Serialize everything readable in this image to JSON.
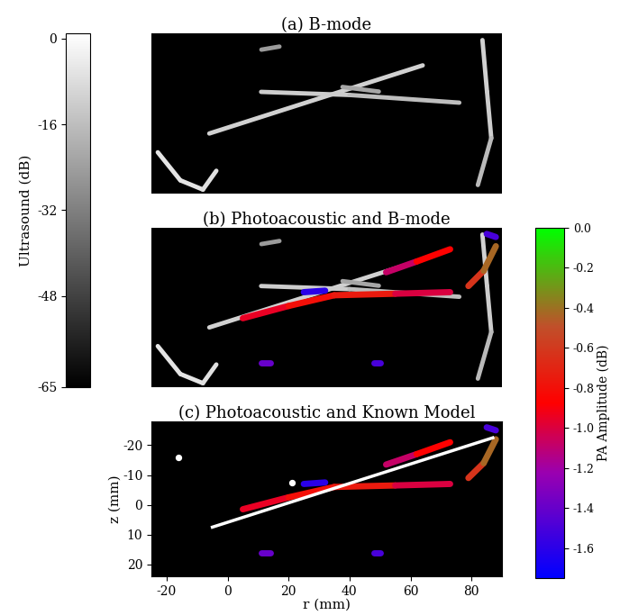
{
  "chart_data": [
    {
      "type": "image",
      "title": "(a) B-mode",
      "xlim": [
        -25,
        90
      ],
      "ylim": [
        24,
        -28
      ],
      "tick_labels": false,
      "ultrasound": [
        {
          "points": [
            [
              -6,
              4.5
            ],
            [
              64,
              -17.6
            ]
          ],
          "db": [
            -12,
            -10
          ]
        },
        {
          "points": [
            [
              11,
              -9
            ],
            [
              40,
              -8
            ],
            [
              76,
              -5.5
            ]
          ],
          "db": [
            -14,
            -10,
            -22
          ]
        },
        {
          "points": [
            [
              -22.9,
              10.6
            ],
            [
              -15.5,
              19.7
            ],
            [
              -8.1,
              22.7
            ],
            [
              -3.7,
              16.6
            ]
          ],
          "db": [
            -6,
            -6,
            -6,
            -8
          ]
        },
        {
          "points": [
            [
              83.6,
              -25.8
            ],
            [
              85.1,
              -9.1
            ],
            [
              86.5,
              6.0
            ],
            [
              82.1,
              21.2
            ]
          ],
          "db": [
            -12,
            -10,
            -14,
            -20
          ]
        },
        {
          "points": [
            [
              11.1,
              -22.7
            ],
            [
              17,
              -23.7
            ]
          ],
          "db": [
            -25,
            -25
          ]
        },
        {
          "points": [
            [
              37.7,
              -10.6
            ],
            [
              49.6,
              -9.1
            ]
          ],
          "db": [
            -22,
            -22
          ]
        }
      ]
    },
    {
      "type": "image",
      "title": "(b) Photoacoustic and B-mode",
      "xlim": [
        -25,
        90
      ],
      "ylim": [
        24,
        -28
      ],
      "tick_labels": false,
      "ultrasound": [
        {
          "points": [
            [
              -6,
              4.5
            ],
            [
              64,
              -17.6
            ]
          ],
          "db": [
            -12,
            -10
          ]
        },
        {
          "points": [
            [
              11,
              -9
            ],
            [
              40,
              -8
            ],
            [
              76,
              -5.5
            ]
          ],
          "db": [
            -14,
            -10,
            -22
          ]
        },
        {
          "points": [
            [
              -22.9,
              10.6
            ],
            [
              -15.5,
              19.7
            ],
            [
              -8.1,
              22.7
            ],
            [
              -3.7,
              16.6
            ]
          ],
          "db": [
            -6,
            -6,
            -6,
            -8
          ]
        },
        {
          "points": [
            [
              83.6,
              -25.8
            ],
            [
              85.1,
              -9.1
            ],
            [
              86.5,
              6.0
            ],
            [
              82.1,
              21.2
            ]
          ],
          "db": [
            -12,
            -10,
            -14,
            -20
          ]
        },
        {
          "points": [
            [
              11.1,
              -22.7
            ],
            [
              17,
              -23.7
            ]
          ],
          "db": [
            -25,
            -25
          ]
        },
        {
          "points": [
            [
              37.7,
              -10.6
            ],
            [
              49.6,
              -9.1
            ]
          ],
          "db": [
            -22,
            -22
          ]
        }
      ],
      "photoacoustic": [
        {
          "points": [
            [
              5,
              1.5
            ],
            [
              20,
              -2.5
            ],
            [
              35,
              -6
            ],
            [
              55,
              -6.5
            ],
            [
              73,
              -7
            ]
          ],
          "amplitude": [
            -1.0,
            -0.9,
            -0.7,
            -0.8,
            -1.2
          ]
        },
        {
          "points": [
            [
              52,
              -13.5
            ],
            [
              62,
              -17
            ],
            [
              73,
              -21
            ]
          ],
          "amplitude": [
            -1.3,
            -0.85,
            -0.9
          ]
        },
        {
          "points": [
            [
              79,
              -9
            ],
            [
              84,
              -14
            ],
            [
              88,
              -22
            ]
          ],
          "amplitude": [
            -0.9,
            -0.35,
            -0.5
          ]
        },
        {
          "points": [
            [
              25,
              -7
            ],
            [
              32,
              -7.5
            ]
          ],
          "amplitude": [
            -1.6,
            -1.6
          ]
        },
        {
          "points": [
            [
              85,
              -26
            ],
            [
              88,
              -25
            ]
          ],
          "amplitude": [
            -1.5,
            -1.5
          ]
        },
        {
          "points": [
            [
              11,
              16
            ],
            [
              14,
              16
            ]
          ],
          "amplitude": [
            -1.4,
            -1.4
          ]
        },
        {
          "points": [
            [
              48,
              16
            ],
            [
              50,
              16
            ]
          ],
          "amplitude": [
            -1.5,
            -1.5
          ]
        }
      ]
    },
    {
      "type": "image",
      "title": "(c) Photoacoustic and Known Model",
      "xlim": [
        -25,
        90
      ],
      "ylim": [
        24,
        -28
      ],
      "xlabel": "r (mm)",
      "ylabel": "z (mm)",
      "xticks": [
        -20,
        0,
        20,
        40,
        60,
        80
      ],
      "yticks": [
        -20,
        -10,
        0,
        10,
        20
      ],
      "photoacoustic": [
        {
          "points": [
            [
              5,
              1.5
            ],
            [
              20,
              -2.5
            ],
            [
              35,
              -6
            ],
            [
              55,
              -6.5
            ],
            [
              73,
              -7
            ]
          ],
          "amplitude": [
            -1.0,
            -0.9,
            -0.7,
            -0.8,
            -1.2
          ]
        },
        {
          "points": [
            [
              52,
              -13.5
            ],
            [
              62,
              -17
            ],
            [
              73,
              -21
            ]
          ],
          "amplitude": [
            -1.3,
            -0.85,
            -0.9
          ]
        },
        {
          "points": [
            [
              79,
              -9
            ],
            [
              84,
              -14
            ],
            [
              88,
              -22
            ]
          ],
          "amplitude": [
            -0.9,
            -0.35,
            -0.5
          ]
        },
        {
          "points": [
            [
              25,
              -7
            ],
            [
              32,
              -7.5
            ]
          ],
          "amplitude": [
            -1.6,
            -1.6
          ]
        },
        {
          "points": [
            [
              85,
              -26
            ],
            [
              88,
              -25
            ]
          ],
          "amplitude": [
            -1.5,
            -1.5
          ]
        },
        {
          "points": [
            [
              11,
              16
            ],
            [
              14,
              16
            ]
          ],
          "amplitude": [
            -1.4,
            -1.4
          ]
        },
        {
          "points": [
            [
              48,
              16
            ],
            [
              50,
              16
            ]
          ],
          "amplitude": [
            -1.5,
            -1.5
          ]
        }
      ],
      "model": [
        {
          "type": "line",
          "color": "#ffffff",
          "points": [
            [
              -5,
              7.5
            ],
            [
              87,
              -22.5
            ]
          ]
        },
        {
          "type": "scatter",
          "color": "#ffffff",
          "marker": "o",
          "points": [
            [
              -16,
              -16
            ],
            [
              21,
              -7.5
            ]
          ]
        }
      ]
    }
  ],
  "colorbars": {
    "ultrasound": {
      "label": "Ultrasound (dB)",
      "range": [
        -65,
        1
      ],
      "ticks": [
        0,
        -16,
        -32,
        -48,
        -65
      ]
    },
    "photoacoustic": {
      "label": "PA Amplitude (dB)",
      "range": [
        -1.75,
        0.0
      ],
      "ticks": [
        0.0,
        -0.2,
        -0.4,
        -0.6,
        -0.8,
        -1.0,
        -1.2,
        -1.4,
        -1.6
      ]
    }
  }
}
